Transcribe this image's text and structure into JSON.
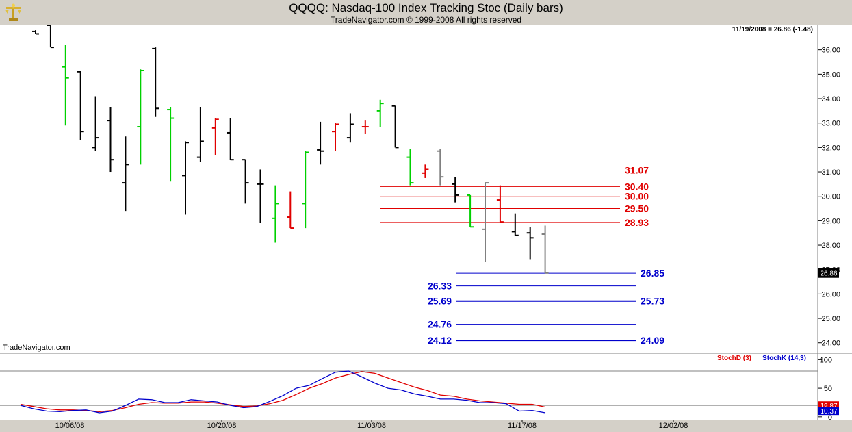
{
  "window": {
    "title": "QQQQ:  Nasdaq-100 Index Tracking Stoc  (Daily bars)",
    "copyright": "TradeNavigator.com © 1999-2008 All rights reserved",
    "watermark": "TradeNavigator.com",
    "status_readout": "11/19/2008 = 26.86 (-1.48)",
    "logo_icon": "gold-scales-icon"
  },
  "colors": {
    "up_bar": "#00d000",
    "red_bar": "#e00000",
    "gray_bar": "#808080",
    "base_bar": "#000000",
    "stoch_d": "#e00000",
    "stoch_k": "#0000cc",
    "resistance": "#e00000",
    "support": "#0000cc"
  },
  "chart_data": [
    {
      "type": "ohlc",
      "symbol": "QQQQ",
      "ylim": [
        23.6,
        37.0
      ],
      "yticks": [
        "24.00",
        "25.00",
        "26.00",
        "27.00",
        "28.00",
        "29.00",
        "30.00",
        "31.00",
        "32.00",
        "33.00",
        "34.00",
        "35.00",
        "36.00"
      ],
      "price_tag": "26.86",
      "bars": [
        {
          "open": 36.75,
          "high": 36.8,
          "low": 36.65,
          "close": 36.65,
          "color": "base"
        },
        {
          "open": 37.0,
          "high": 37.0,
          "low": 36.1,
          "close": 36.1,
          "color": "base"
        },
        {
          "open": 35.3,
          "high": 36.2,
          "low": 32.9,
          "close": 34.85,
          "color": "up"
        },
        {
          "open": 35.1,
          "high": 35.15,
          "low": 32.3,
          "close": 32.65,
          "color": "base"
        },
        {
          "open": 32.0,
          "high": 34.1,
          "low": 31.85,
          "close": 32.4,
          "color": "base"
        },
        {
          "open": 33.1,
          "high": 33.65,
          "low": 31.0,
          "close": 31.5,
          "color": "base"
        },
        {
          "open": 30.55,
          "high": 32.45,
          "low": 29.4,
          "close": 31.3,
          "color": "base"
        },
        {
          "open": 32.85,
          "high": 35.2,
          "low": 31.3,
          "close": 35.15,
          "color": "up"
        },
        {
          "open": 36.05,
          "high": 36.1,
          "low": 33.25,
          "close": 33.6,
          "color": "base"
        },
        {
          "open": 33.55,
          "high": 33.65,
          "low": 30.6,
          "close": 33.2,
          "color": "up"
        },
        {
          "open": 30.85,
          "high": 32.25,
          "low": 29.25,
          "close": 32.2,
          "color": "base"
        },
        {
          "open": 31.6,
          "high": 33.65,
          "low": 31.4,
          "close": 32.25,
          "color": "base"
        },
        {
          "open": 32.8,
          "high": 33.2,
          "low": 31.7,
          "close": 33.15,
          "color": "red"
        },
        {
          "open": 32.6,
          "high": 33.2,
          "low": 31.5,
          "close": 31.5,
          "color": "base"
        },
        {
          "open": 31.5,
          "high": 31.5,
          "low": 29.7,
          "close": 30.55,
          "color": "base"
        },
        {
          "open": 30.5,
          "high": 31.1,
          "low": 28.9,
          "close": 30.5,
          "color": "base"
        },
        {
          "open": 29.1,
          "high": 30.45,
          "low": 28.1,
          "close": 29.7,
          "color": "up"
        },
        {
          "open": 29.15,
          "high": 30.2,
          "low": 28.7,
          "close": 28.7,
          "color": "red"
        },
        {
          "open": 29.7,
          "high": 31.85,
          "low": 28.7,
          "close": 31.8,
          "color": "up"
        },
        {
          "open": 31.9,
          "high": 33.05,
          "low": 31.3,
          "close": 31.85,
          "color": "base"
        },
        {
          "open": 32.65,
          "high": 33.0,
          "low": 31.85,
          "close": 32.95,
          "color": "red"
        },
        {
          "open": 32.4,
          "high": 33.4,
          "low": 32.2,
          "close": 32.95,
          "color": "base"
        },
        {
          "open": 32.85,
          "high": 33.1,
          "low": 32.55,
          "close": 32.85,
          "color": "red"
        },
        {
          "open": 33.5,
          "high": 33.95,
          "low": 32.85,
          "close": 33.8,
          "color": "up"
        },
        {
          "open": 33.7,
          "high": 33.7,
          "low": 32.0,
          "close": 32.0,
          "color": "base"
        },
        {
          "open": 31.6,
          "high": 31.95,
          "low": 30.45,
          "close": 30.55,
          "color": "up"
        },
        {
          "open": 30.95,
          "high": 31.3,
          "low": 30.75,
          "close": 31.1,
          "color": "red"
        },
        {
          "open": 31.85,
          "high": 31.95,
          "low": 30.45,
          "close": 30.8,
          "color": "gray"
        },
        {
          "open": 30.5,
          "high": 30.8,
          "low": 29.75,
          "close": 30.05,
          "color": "base"
        },
        {
          "open": 30.05,
          "high": 30.05,
          "low": 28.75,
          "close": 28.75,
          "color": "up"
        },
        {
          "open": 28.65,
          "high": 30.55,
          "low": 27.3,
          "close": 30.55,
          "color": "gray"
        },
        {
          "open": 29.85,
          "high": 30.45,
          "low": 28.95,
          "close": 28.95,
          "color": "red"
        },
        {
          "open": 28.55,
          "high": 29.3,
          "low": 28.4,
          "close": 28.4,
          "color": "base"
        },
        {
          "open": 28.5,
          "high": 28.75,
          "low": 27.4,
          "close": 28.3,
          "color": "base"
        },
        {
          "open": 28.45,
          "high": 28.8,
          "low": 26.85,
          "close": 26.86,
          "color": "gray"
        }
      ],
      "resistance_levels": [
        {
          "value": 31.07,
          "label": "31.07"
        },
        {
          "value": 30.4,
          "label": "30.40"
        },
        {
          "value": 30.0,
          "label": "30.00"
        },
        {
          "value": 29.5,
          "label": "29.50"
        },
        {
          "value": 28.93,
          "label": "28.93"
        }
      ],
      "support_levels": [
        {
          "value": 26.85,
          "left_label": "",
          "right_label": "26.85",
          "thick": false
        },
        {
          "value": 26.33,
          "left_label": "26.33",
          "right_label": "",
          "thick": false
        },
        {
          "value": 25.71,
          "left_label": "25.69",
          "right_label": "25.73",
          "thick": true
        },
        {
          "value": 24.76,
          "left_label": "24.76",
          "right_label": "",
          "thick": false
        },
        {
          "value": 24.1,
          "left_label": "24.12",
          "right_label": "24.09",
          "thick": true
        }
      ],
      "grid": true
    },
    {
      "type": "line",
      "ylim": [
        -5,
        110
      ],
      "yticks": [
        "0",
        "50",
        "100"
      ],
      "reference_lines": [
        80,
        20
      ],
      "series": [
        {
          "name": "StochD (3)",
          "color": "#e00000",
          "values": [
            22,
            18,
            14,
            12,
            12,
            11,
            9,
            11,
            16,
            22,
            25,
            24,
            24,
            26,
            26,
            24,
            21,
            18,
            19,
            23,
            29,
            39,
            50,
            58,
            68,
            74,
            79,
            76,
            68,
            60,
            52,
            46,
            38,
            36,
            31,
            28,
            26,
            24,
            22,
            22,
            17
          ]
        },
        {
          "name": "StochK (14,3)",
          "color": "#0000cc",
          "values": [
            20,
            14,
            10,
            9,
            11,
            12,
            7,
            10,
            20,
            31,
            30,
            25,
            25,
            30,
            28,
            26,
            20,
            16,
            18,
            27,
            37,
            50,
            55,
            67,
            78,
            80,
            70,
            59,
            50,
            47,
            40,
            36,
            31,
            31,
            29,
            25,
            25,
            23,
            10,
            11,
            7
          ]
        },
        {
          "tags": [
            "19.87",
            "10.37"
          ]
        }
      ]
    }
  ],
  "x_axis": {
    "ticks": [
      "10/06/08",
      "10/20/08",
      "11/03/08",
      "11/17/08",
      "12/02/08"
    ]
  }
}
